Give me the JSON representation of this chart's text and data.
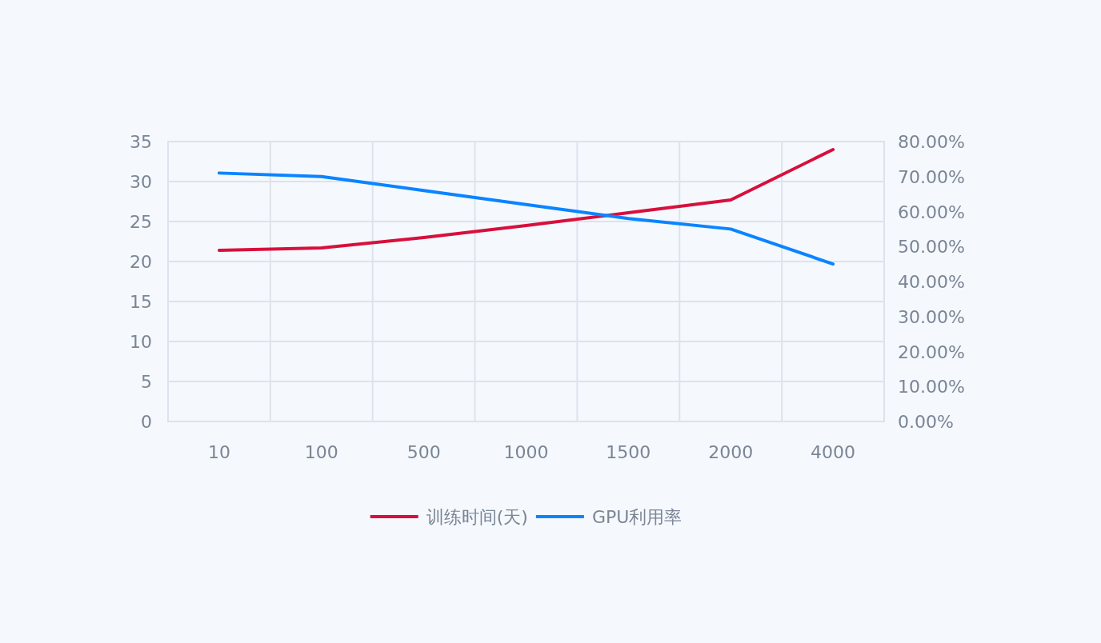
{
  "chart_data": {
    "type": "line",
    "categories": [
      "10",
      "100",
      "500",
      "1000",
      "1500",
      "2000",
      "4000"
    ],
    "series": [
      {
        "name": "训练时间(天)",
        "color": "#d80f3c",
        "values": [
          21.4,
          21.7,
          23.0,
          24.5,
          26.1,
          27.7,
          34.0
        ]
      },
      {
        "name": "GPU利用率",
        "color": "#0a84ff",
        "axis": "y2",
        "values": [
          71,
          70,
          66,
          62,
          58,
          55,
          45
        ]
      }
    ],
    "ylim": [
      0,
      35
    ],
    "yticks": [
      0,
      5,
      10,
      15,
      20,
      25,
      30,
      35
    ],
    "y2lim": [
      0,
      80
    ],
    "y2ticks": [
      {
        "value": 0,
        "label": "0.00%"
      },
      {
        "value": 10,
        "label": "10.00%"
      },
      {
        "value": 20,
        "label": "20.00%"
      },
      {
        "value": 30,
        "label": "30.00%"
      },
      {
        "value": 40,
        "label": "40.00%"
      },
      {
        "value": 50,
        "label": "50.00%"
      },
      {
        "value": 60,
        "label": "60.00%"
      },
      {
        "value": 70,
        "label": "70.00%"
      },
      {
        "value": 80,
        "label": "80.00%"
      }
    ],
    "grid": true,
    "legend": "bottom"
  }
}
